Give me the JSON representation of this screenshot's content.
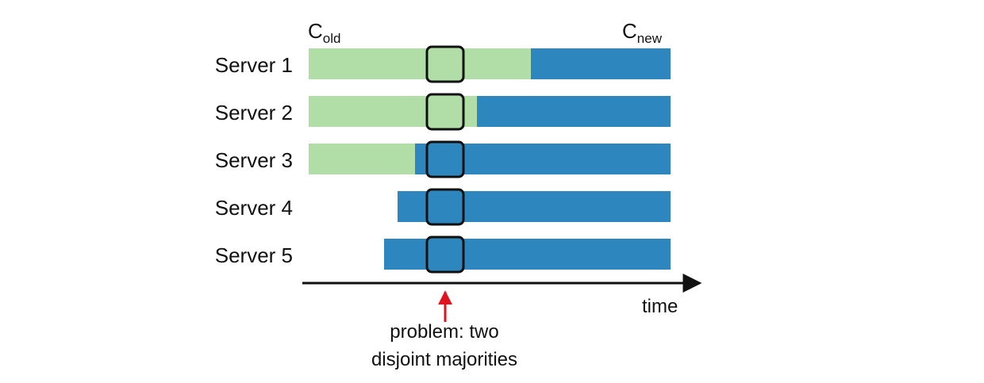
{
  "labels": {
    "c_old_main": "C",
    "c_old_sub": "old",
    "c_new_main": "C",
    "c_new_sub": "new",
    "time": "time",
    "problem_line1": "problem: two",
    "problem_line2": "disjoint majorities"
  },
  "servers": [
    {
      "name": "Server 1",
      "config_at_problem": "old"
    },
    {
      "name": "Server 2",
      "config_at_problem": "old"
    },
    {
      "name": "Server 3",
      "config_at_problem": "new"
    },
    {
      "name": "Server 4",
      "config_at_problem": "new"
    },
    {
      "name": "Server 5",
      "config_at_problem": "new"
    }
  ],
  "colors": {
    "old_config": "#b0dea6",
    "new_config": "#2e86bf",
    "outline": "#111111",
    "arrow": "#111111",
    "problem_arrow": "#e0141e"
  }
}
